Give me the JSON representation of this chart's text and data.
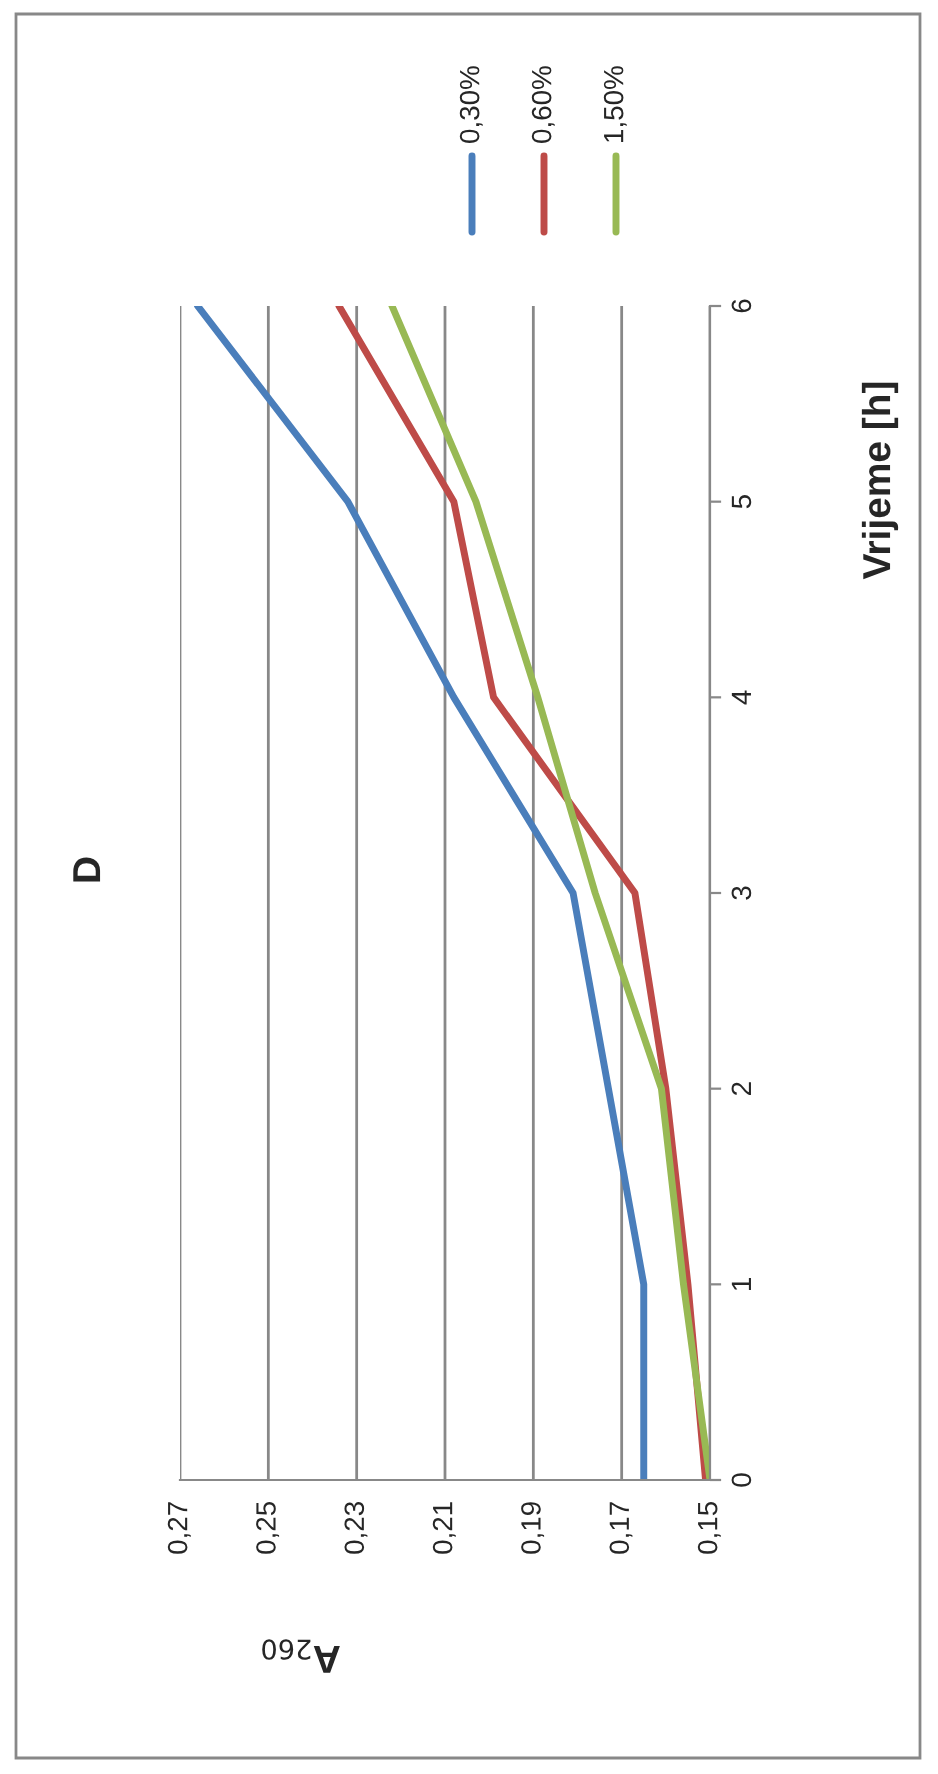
{
  "chart_data": {
    "type": "line",
    "title": "D",
    "xlabel": "A$_{260}$",
    "ylabel": "Vrijeme [h]",
    "series": [
      {
        "name": "0,30%",
        "color": "#4a7ebb",
        "x": [
          0.165,
          0.165,
          0.173,
          0.181,
          0.208,
          0.232,
          0.266
        ],
        "values": [
          0,
          1,
          2,
          3,
          4,
          5,
          6
        ]
      },
      {
        "name": "0,60%",
        "color": "#be4b48",
        "x": [
          0.151,
          0.155,
          0.16,
          0.167,
          0.199,
          0.208,
          0.234
        ],
        "values": [
          0,
          1,
          2,
          3,
          4,
          5,
          6
        ]
      },
      {
        "name": "1,50%",
        "color": "#98b954",
        "x": [
          0.15,
          0.156,
          0.161,
          0.176,
          0.189,
          0.203,
          0.222
        ],
        "values": [
          0,
          1,
          2,
          3,
          4,
          5,
          6
        ]
      }
    ],
    "ylim": [
      0,
      6
    ],
    "yticks": [
      0,
      1,
      2,
      3,
      4,
      5,
      6
    ],
    "xlim": [
      0.27,
      0.15
    ],
    "xticks": [
      {
        "value": 0.15,
        "label": "0,15"
      },
      {
        "value": 0.17,
        "label": "0,17"
      },
      {
        "value": 0.19,
        "label": "0,19"
      },
      {
        "value": 0.21,
        "label": "0,21"
      },
      {
        "value": 0.23,
        "label": "0,23"
      },
      {
        "value": 0.25,
        "label": "0,25"
      },
      {
        "value": 0.27,
        "label": "0,27"
      }
    ],
    "grid": "x",
    "legend": "top",
    "marker": "none",
    "line_style": "solid"
  }
}
